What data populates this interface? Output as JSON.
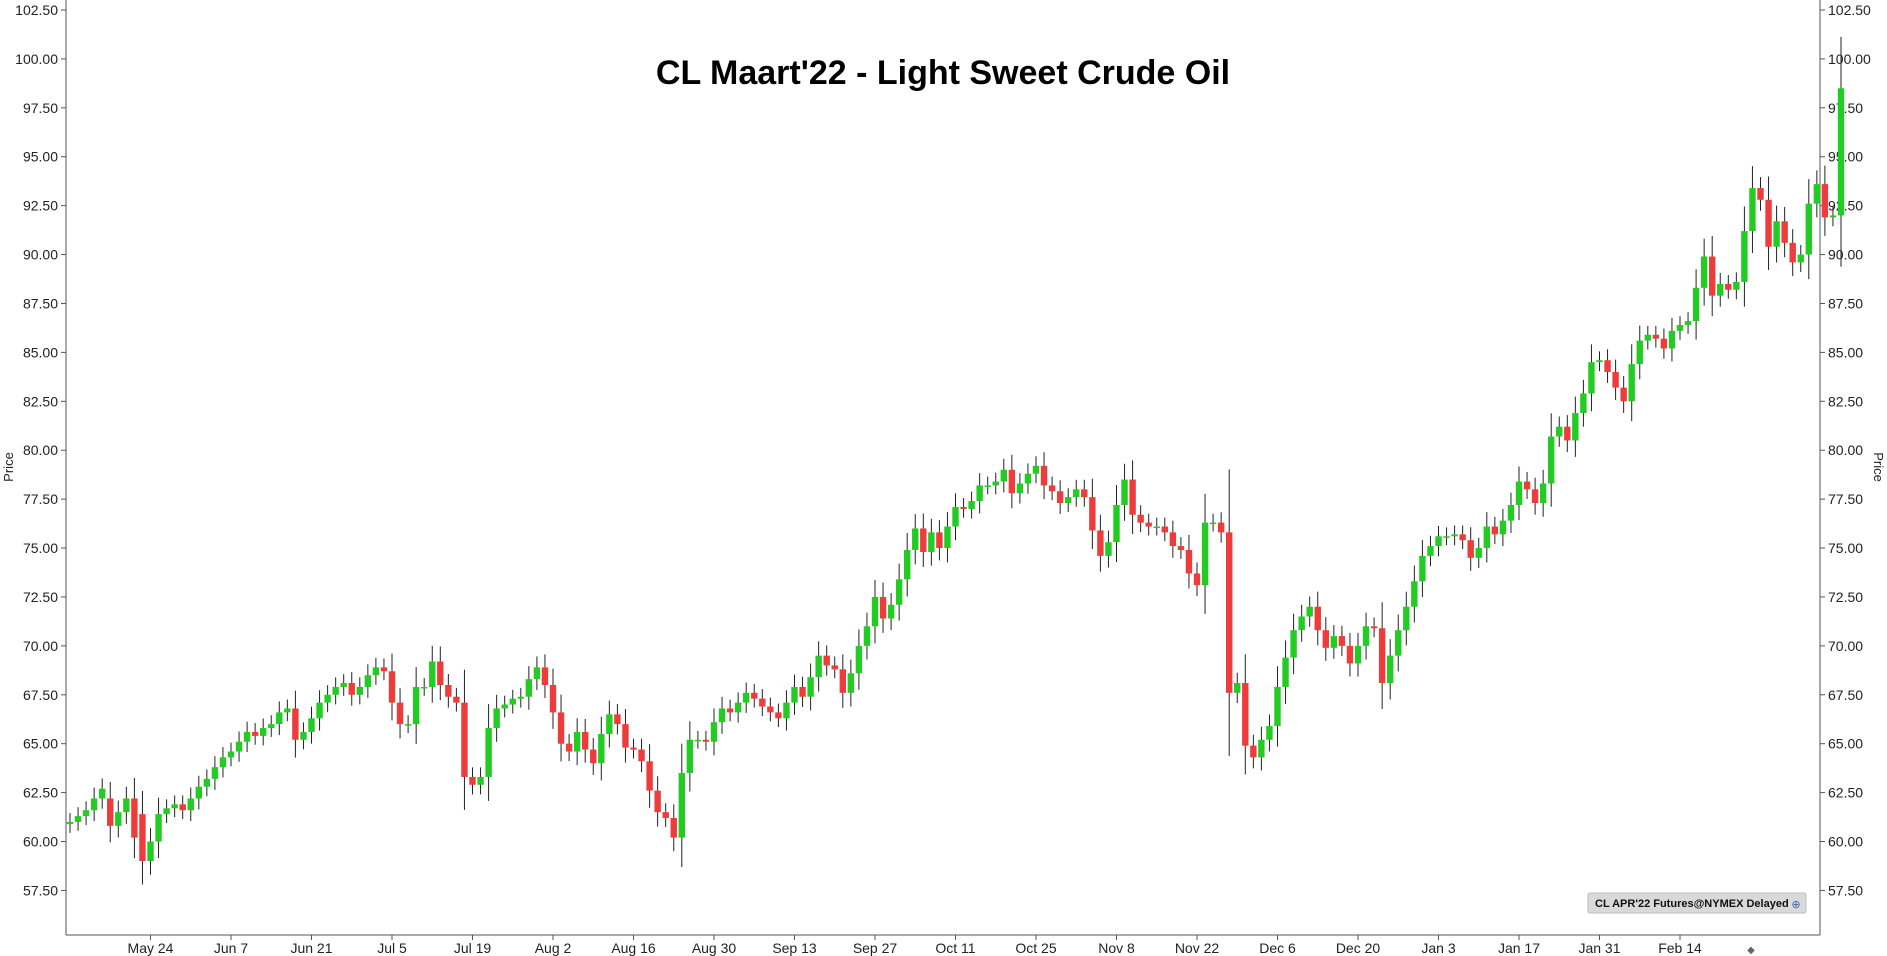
{
  "chart_data": {
    "type": "candlestick",
    "title": "CL Maart'22 - Light Sweet Crude Oil",
    "ylabel_left": "Price",
    "ylabel_right": "Price",
    "source": "CL APR'22 Futures@NYMEX Delayed",
    "ylim": [
      56.5,
      102.5
    ],
    "yticks": [
      "102.50",
      "100.00",
      "97.50",
      "95.00",
      "92.50",
      "90.00",
      "87.50",
      "85.00",
      "82.50",
      "80.00",
      "77.50",
      "75.00",
      "72.50",
      "70.00",
      "67.50",
      "65.00",
      "62.50",
      "60.00",
      "57.50"
    ],
    "xtick_labels": [
      "May 24",
      "Jun 7",
      "Jun 21",
      "Jul 5",
      "Jul 19",
      "Aug 2",
      "Aug 16",
      "Aug 30",
      "Sep 13",
      "Sep 27",
      "Oct 11",
      "Oct 25",
      "Nov 8",
      "Nov 22",
      "Dec 6",
      "Dec 20",
      "Jan 3",
      "Jan 17",
      "Jan 31",
      "Feb 14"
    ],
    "xtick_index": [
      10,
      20,
      30,
      40,
      50,
      60,
      70,
      80,
      90,
      100,
      110,
      120,
      130,
      140,
      150,
      160,
      170,
      180,
      190,
      200
    ],
    "up_color": "#22cc22",
    "down_color": "#ee3b3b",
    "close": [
      61.0,
      61.3,
      61.6,
      62.2,
      62.7,
      60.8,
      61.5,
      62.2,
      60.2,
      59.0,
      60.0,
      61.4,
      61.7,
      61.9,
      61.6,
      62.2,
      62.8,
      63.2,
      63.8,
      64.3,
      64.6,
      65.1,
      65.6,
      65.4,
      65.8,
      66.0,
      66.6,
      66.8,
      65.2,
      65.6,
      66.3,
      67.1,
      67.5,
      67.9,
      68.1,
      67.5,
      67.9,
      68.5,
      68.9,
      68.7,
      67.1,
      66.0,
      66.0,
      67.9,
      67.9,
      69.2,
      68.0,
      67.4,
      67.1,
      63.3,
      62.9,
      63.3,
      65.8,
      66.8,
      67.0,
      67.3,
      67.4,
      68.3,
      68.9,
      68.0,
      66.6,
      65.0,
      64.6,
      65.6,
      64.7,
      64.0,
      65.5,
      66.5,
      66.0,
      64.8,
      64.7,
      64.1,
      62.6,
      61.5,
      61.2,
      60.2,
      63.5,
      65.2,
      65.2,
      65.1,
      66.1,
      66.8,
      66.6,
      67.1,
      67.6,
      67.3,
      66.9,
      66.6,
      66.3,
      67.1,
      67.9,
      67.4,
      68.4,
      69.5,
      69.0,
      68.8,
      67.6,
      68.6,
      70.0,
      71.0,
      72.5,
      71.4,
      72.1,
      73.4,
      74.9,
      76.0,
      74.8,
      75.8,
      75.0,
      76.1,
      77.1,
      77.0,
      77.4,
      78.2,
      78.2,
      78.4,
      79.0,
      77.8,
      78.3,
      78.8,
      79.2,
      78.2,
      77.9,
      77.3,
      77.6,
      78.0,
      77.6,
      75.9,
      74.6,
      75.3,
      77.2,
      78.5,
      76.7,
      76.3,
      76.1,
      76.1,
      75.8,
      75.1,
      74.9,
      73.7,
      73.1,
      76.3,
      76.3,
      75.8,
      67.6,
      68.1,
      64.9,
      64.3,
      65.2,
      65.9,
      67.9,
      69.4,
      70.8,
      71.5,
      72.0,
      70.8,
      69.9,
      70.5,
      70.0,
      69.1,
      70.0,
      71.0,
      70.9,
      68.1,
      69.5,
      70.8,
      72.0,
      73.3,
      74.6,
      75.1,
      75.6,
      75.6,
      75.7,
      75.4,
      74.5,
      75.0,
      76.1,
      75.7,
      76.4,
      77.2,
      78.4,
      78.0,
      77.3,
      78.3,
      80.7,
      81.2,
      80.5,
      81.9,
      82.9,
      84.5,
      84.6,
      84.0,
      83.2,
      82.5,
      84.4,
      85.6,
      85.9,
      85.7,
      85.2,
      86.1,
      86.4,
      86.6,
      88.3,
      89.9,
      87.9,
      88.5,
      88.2,
      88.6,
      91.2,
      93.4,
      92.8,
      90.4,
      91.7,
      90.6,
      89.6,
      90.0,
      92.6,
      93.6,
      91.9,
      92.0,
      98.5
    ],
    "open": [
      60.9,
      61.0,
      61.3,
      61.6,
      62.2,
      62.2,
      60.8,
      61.5,
      62.2,
      61.4,
      59.0,
      60.0,
      61.4,
      61.7,
      61.9,
      61.6,
      62.2,
      62.8,
      63.2,
      63.8,
      64.3,
      64.6,
      65.1,
      65.6,
      65.4,
      65.8,
      66.0,
      66.6,
      66.8,
      65.2,
      65.6,
      66.3,
      67.1,
      67.5,
      67.9,
      68.1,
      67.5,
      67.9,
      68.5,
      68.9,
      68.7,
      67.1,
      66.0,
      66.0,
      67.9,
      67.9,
      69.2,
      68.0,
      67.4,
      67.1,
      63.3,
      62.9,
      63.3,
      65.8,
      66.8,
      67.0,
      67.3,
      67.4,
      68.3,
      68.9,
      68.0,
      66.6,
      65.0,
      64.6,
      65.6,
      64.7,
      64.0,
      65.5,
      66.5,
      66.0,
      64.8,
      64.7,
      64.1,
      62.6,
      61.5,
      61.2,
      60.2,
      63.5,
      65.2,
      65.2,
      65.1,
      66.1,
      66.8,
      66.6,
      67.1,
      67.6,
      67.3,
      66.9,
      66.6,
      66.3,
      67.1,
      67.9,
      67.4,
      68.4,
      69.5,
      69.0,
      68.8,
      67.6,
      68.6,
      70.0,
      71.0,
      72.5,
      71.4,
      72.1,
      73.4,
      74.9,
      76.0,
      74.8,
      75.8,
      75.0,
      76.1,
      77.1,
      77.0,
      77.4,
      78.2,
      78.2,
      78.4,
      79.0,
      77.8,
      78.3,
      78.8,
      79.2,
      78.2,
      77.9,
      77.3,
      77.6,
      78.0,
      77.6,
      75.9,
      74.6,
      75.3,
      77.2,
      78.5,
      76.7,
      76.3,
      76.1,
      76.1,
      75.8,
      75.1,
      74.9,
      73.7,
      73.1,
      76.3,
      76.3,
      75.8,
      67.6,
      68.1,
      64.9,
      64.3,
      65.2,
      65.9,
      67.9,
      69.4,
      70.8,
      71.5,
      72.0,
      70.8,
      69.9,
      70.5,
      70.0,
      69.1,
      70.0,
      71.0,
      70.9,
      68.1,
      69.5,
      70.8,
      72.0,
      73.3,
      74.6,
      75.1,
      75.6,
      75.6,
      75.7,
      75.4,
      74.5,
      75.0,
      76.1,
      75.7,
      76.4,
      77.2,
      78.4,
      78.0,
      77.3,
      78.3,
      80.7,
      81.2,
      80.5,
      81.9,
      82.9,
      84.5,
      84.6,
      84.0,
      83.2,
      82.5,
      84.4,
      85.6,
      85.9,
      85.7,
      85.2,
      86.1,
      86.4,
      86.6,
      88.3,
      89.9,
      87.9,
      88.5,
      88.2,
      88.6,
      91.2,
      93.4,
      92.8,
      90.4,
      91.7,
      90.6,
      89.6,
      90.0,
      92.6,
      93.6,
      91.9,
      92.0
    ]
  }
}
